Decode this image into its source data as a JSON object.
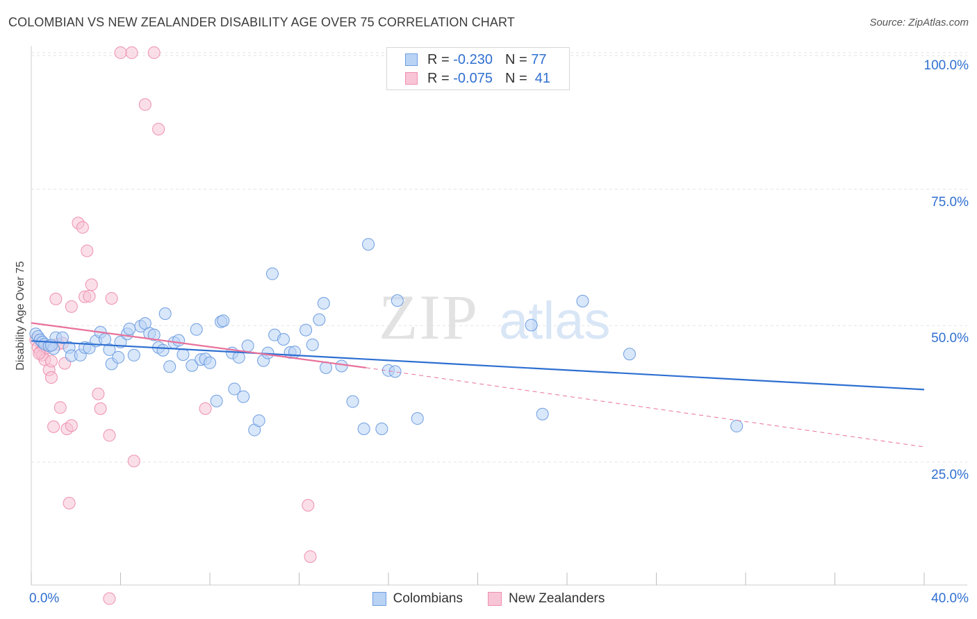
{
  "title": "COLOMBIAN VS NEW ZEALANDER DISABILITY AGE OVER 75 CORRELATION CHART",
  "source": "Source: ZipAtlas.com",
  "colors": {
    "blue_fill": "#b9d3f5",
    "blue_stroke": "#6d9de0",
    "blue_line": "#2d6fd1",
    "pink_fill": "#f8c5d6",
    "pink_stroke": "#ee8fae",
    "pink_line": "#e8719a",
    "tick_text": "#2f6fd0",
    "grid": "#e3e3e3"
  },
  "legend_stats": [
    {
      "r_label": "R =",
      "r_value": "-0.230",
      "n_label": "N =",
      "n_value": "77"
    },
    {
      "r_label": "R =",
      "r_value": "-0.075",
      "n_label": "N =",
      "n_value": "41"
    }
  ],
  "chart_data": {
    "type": "scatter",
    "title": "COLOMBIAN VS NEW ZEALANDER DISABILITY AGE OVER 75 CORRELATION CHART",
    "xlabel": "",
    "ylabel": "Disability Age Over 75",
    "xlim": [
      0,
      40
    ],
    "ylim": [
      2.5,
      100.5
    ],
    "x_tick_labels": [
      "0.0%",
      "40.0%"
    ],
    "y_ticks": [
      25,
      50,
      75,
      100
    ],
    "y_tick_labels": [
      "25.0%",
      "50.0%",
      "75.0%",
      "100.0%"
    ],
    "grid": true,
    "legend_position": "bottom",
    "series": [
      {
        "name": "Colombians",
        "color": "#6d9de0",
        "points": [
          [
            0.2,
            48.5
          ],
          [
            0.3,
            48.0
          ],
          [
            0.4,
            47.4
          ],
          [
            0.5,
            47.0
          ],
          [
            0.6,
            46.6
          ],
          [
            0.8,
            46.3
          ],
          [
            1.0,
            45.8
          ],
          [
            1.1,
            47.8
          ],
          [
            1.4,
            47.8
          ],
          [
            1.7,
            46.0
          ],
          [
            1.8,
            44.5
          ],
          [
            2.2,
            44.6
          ],
          [
            2.4,
            46.0
          ],
          [
            2.6,
            45.9
          ],
          [
            2.9,
            47.2
          ],
          [
            3.1,
            48.8
          ],
          [
            3.3,
            47.5
          ],
          [
            3.5,
            45.6
          ],
          [
            3.6,
            43.0
          ],
          [
            3.9,
            44.2
          ],
          [
            4.0,
            47.0
          ],
          [
            4.3,
            48.5
          ],
          [
            4.4,
            49.4
          ],
          [
            4.6,
            44.6
          ],
          [
            4.9,
            49.9
          ],
          [
            5.1,
            50.4
          ],
          [
            5.3,
            48.6
          ],
          [
            5.5,
            48.3
          ],
          [
            5.7,
            46.0
          ],
          [
            5.9,
            45.5
          ],
          [
            6.0,
            52.2
          ],
          [
            6.2,
            42.5
          ],
          [
            6.4,
            46.9
          ],
          [
            6.6,
            47.3
          ],
          [
            6.8,
            44.7
          ],
          [
            7.2,
            42.7
          ],
          [
            7.4,
            49.3
          ],
          [
            7.6,
            43.8
          ],
          [
            7.8,
            43.9
          ],
          [
            8.0,
            43.2
          ],
          [
            8.3,
            36.2
          ],
          [
            8.5,
            50.7
          ],
          [
            8.6,
            50.9
          ],
          [
            9.0,
            45.0
          ],
          [
            9.1,
            38.4
          ],
          [
            9.3,
            44.2
          ],
          [
            9.5,
            37.0
          ],
          [
            9.7,
            46.3
          ],
          [
            10.0,
            30.9
          ],
          [
            10.2,
            32.6
          ],
          [
            10.4,
            43.6
          ],
          [
            10.6,
            45.0
          ],
          [
            10.8,
            59.5
          ],
          [
            10.9,
            48.3
          ],
          [
            11.3,
            47.5
          ],
          [
            11.6,
            45.1
          ],
          [
            11.8,
            45.2
          ],
          [
            12.3,
            49.2
          ],
          [
            12.6,
            46.5
          ],
          [
            12.9,
            51.1
          ],
          [
            13.1,
            54.1
          ],
          [
            13.2,
            42.3
          ],
          [
            13.9,
            42.6
          ],
          [
            14.4,
            36.1
          ],
          [
            14.9,
            31.1
          ],
          [
            15.1,
            64.9
          ],
          [
            15.7,
            31.1
          ],
          [
            16.0,
            41.8
          ],
          [
            16.3,
            41.6
          ],
          [
            16.4,
            54.6
          ],
          [
            17.3,
            33.0
          ],
          [
            22.4,
            50.1
          ],
          [
            22.9,
            33.8
          ],
          [
            24.7,
            54.5
          ],
          [
            26.8,
            44.8
          ],
          [
            31.6,
            31.6
          ],
          [
            0.9,
            46.4
          ]
        ]
      },
      {
        "name": "New Zealanders",
        "color": "#ee8fae",
        "points": [
          [
            0.2,
            47.4
          ],
          [
            0.3,
            46.0
          ],
          [
            0.4,
            45.2
          ],
          [
            0.5,
            44.6
          ],
          [
            0.55,
            46.2
          ],
          [
            0.6,
            43.8
          ],
          [
            0.7,
            45.9
          ],
          [
            0.8,
            41.9
          ],
          [
            0.9,
            40.5
          ],
          [
            0.9,
            43.5
          ],
          [
            1.0,
            31.5
          ],
          [
            1.1,
            54.9
          ],
          [
            1.2,
            46.6
          ],
          [
            1.3,
            35.0
          ],
          [
            1.5,
            43.1
          ],
          [
            1.6,
            31.1
          ],
          [
            1.7,
            17.5
          ],
          [
            1.8,
            31.7
          ],
          [
            1.8,
            53.5
          ],
          [
            2.1,
            68.8
          ],
          [
            2.3,
            68.0
          ],
          [
            2.4,
            55.3
          ],
          [
            2.5,
            63.7
          ],
          [
            2.6,
            55.4
          ],
          [
            2.7,
            57.5
          ],
          [
            3.0,
            37.5
          ],
          [
            3.1,
            34.8
          ],
          [
            3.5,
            29.9
          ],
          [
            3.6,
            55.0
          ],
          [
            4.0,
            100.0
          ],
          [
            4.5,
            100.0
          ],
          [
            4.6,
            25.2
          ],
          [
            5.1,
            90.5
          ],
          [
            5.5,
            100.0
          ],
          [
            5.7,
            86.0
          ],
          [
            7.8,
            34.8
          ],
          [
            12.4,
            17.1
          ],
          [
            12.5,
            7.7
          ],
          [
            3.5,
            0.0
          ],
          [
            1.4,
            46.8
          ],
          [
            0.35,
            44.9
          ]
        ]
      }
    ],
    "trend_lines": [
      {
        "series": "Colombians",
        "x": [
          0,
          40
        ],
        "y": [
          47.2,
          38.3
        ]
      },
      {
        "series": "New Zealanders",
        "x": [
          0,
          15
        ],
        "y": [
          50.5,
          42.3
        ],
        "dashed_extension_to": [
          40,
          27.8
        ]
      }
    ]
  },
  "legend_bottom": [
    "Colombians",
    "New Zealanders"
  ]
}
